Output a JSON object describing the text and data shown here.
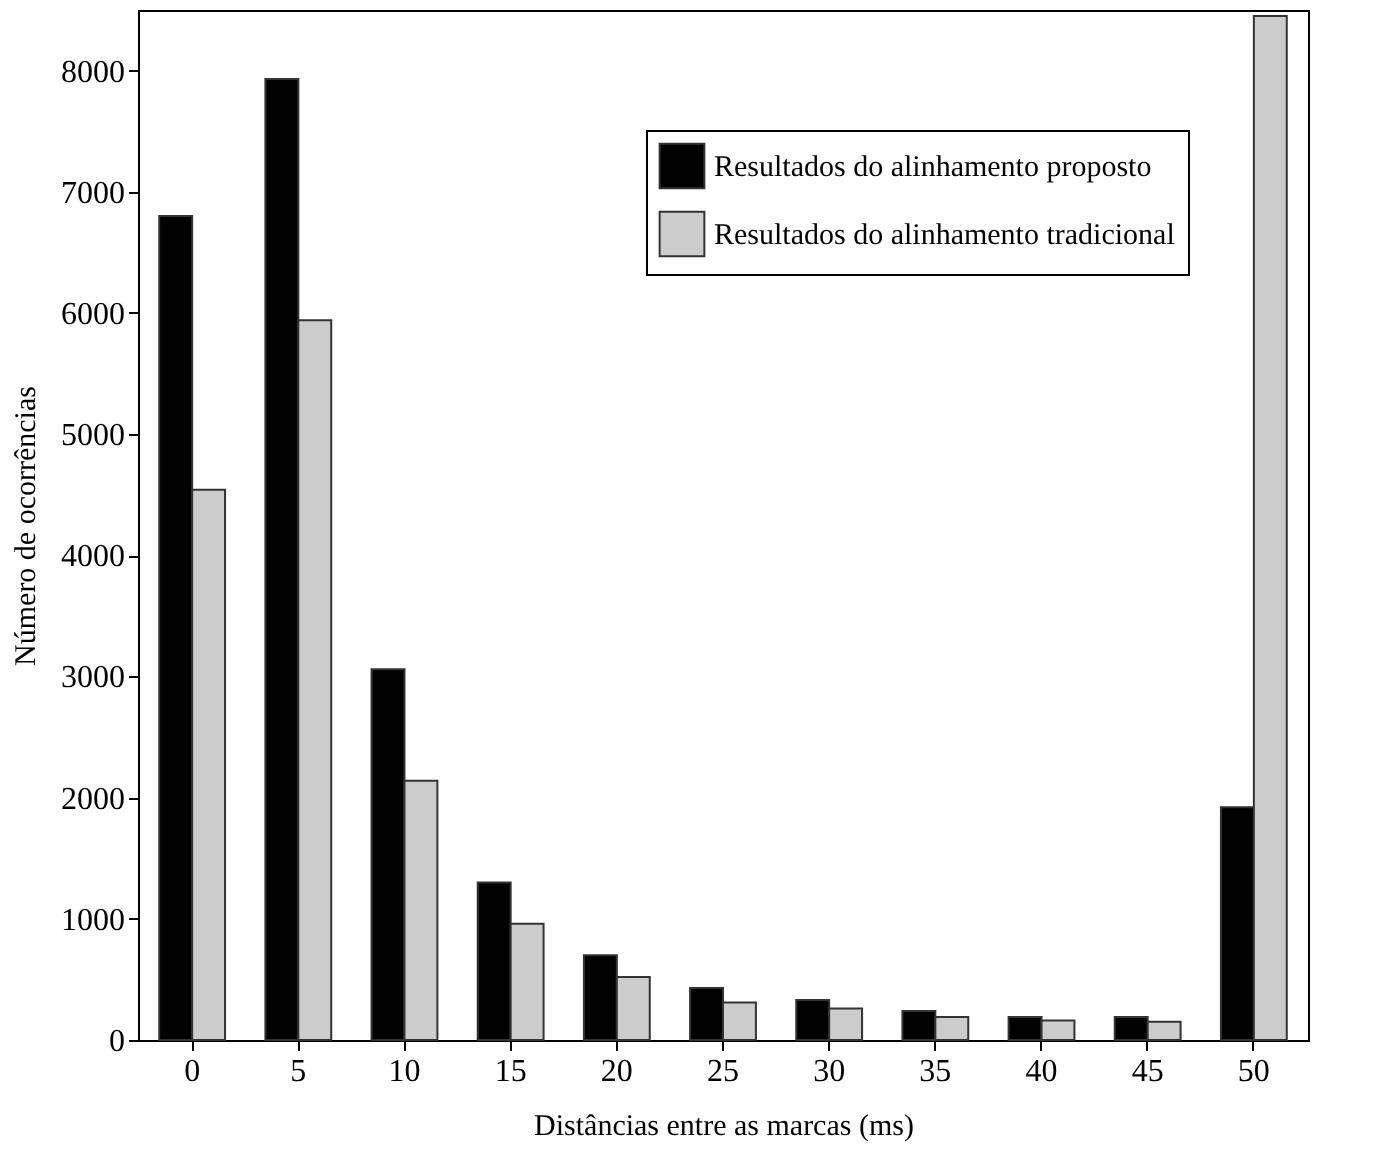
{
  "chart_data": {
    "type": "bar",
    "xlabel": "Distâncias entre as marcas (ms)",
    "ylabel": "Número de ocorrências",
    "categories": [
      "0",
      "5",
      "10",
      "15",
      "20",
      "25",
      "30",
      "35",
      "40",
      "45",
      "50"
    ],
    "series": [
      {
        "name": "Resultados do alinhamento proposto",
        "color": "#000000",
        "values": [
          6800,
          7930,
          3060,
          1300,
          700,
          430,
          330,
          240,
          190,
          190,
          1920
        ]
      },
      {
        "name": "Resultados do alinhamento tradicional",
        "color": "#cccccc",
        "values": [
          4540,
          5940,
          2140,
          960,
          520,
          310,
          260,
          190,
          160,
          150,
          8450
        ]
      }
    ],
    "ylim": [
      0,
      8500
    ],
    "yticks": [
      0,
      1000,
      2000,
      3000,
      4000,
      5000,
      6000,
      7000,
      8000
    ],
    "grid": false,
    "legend": "top right"
  }
}
